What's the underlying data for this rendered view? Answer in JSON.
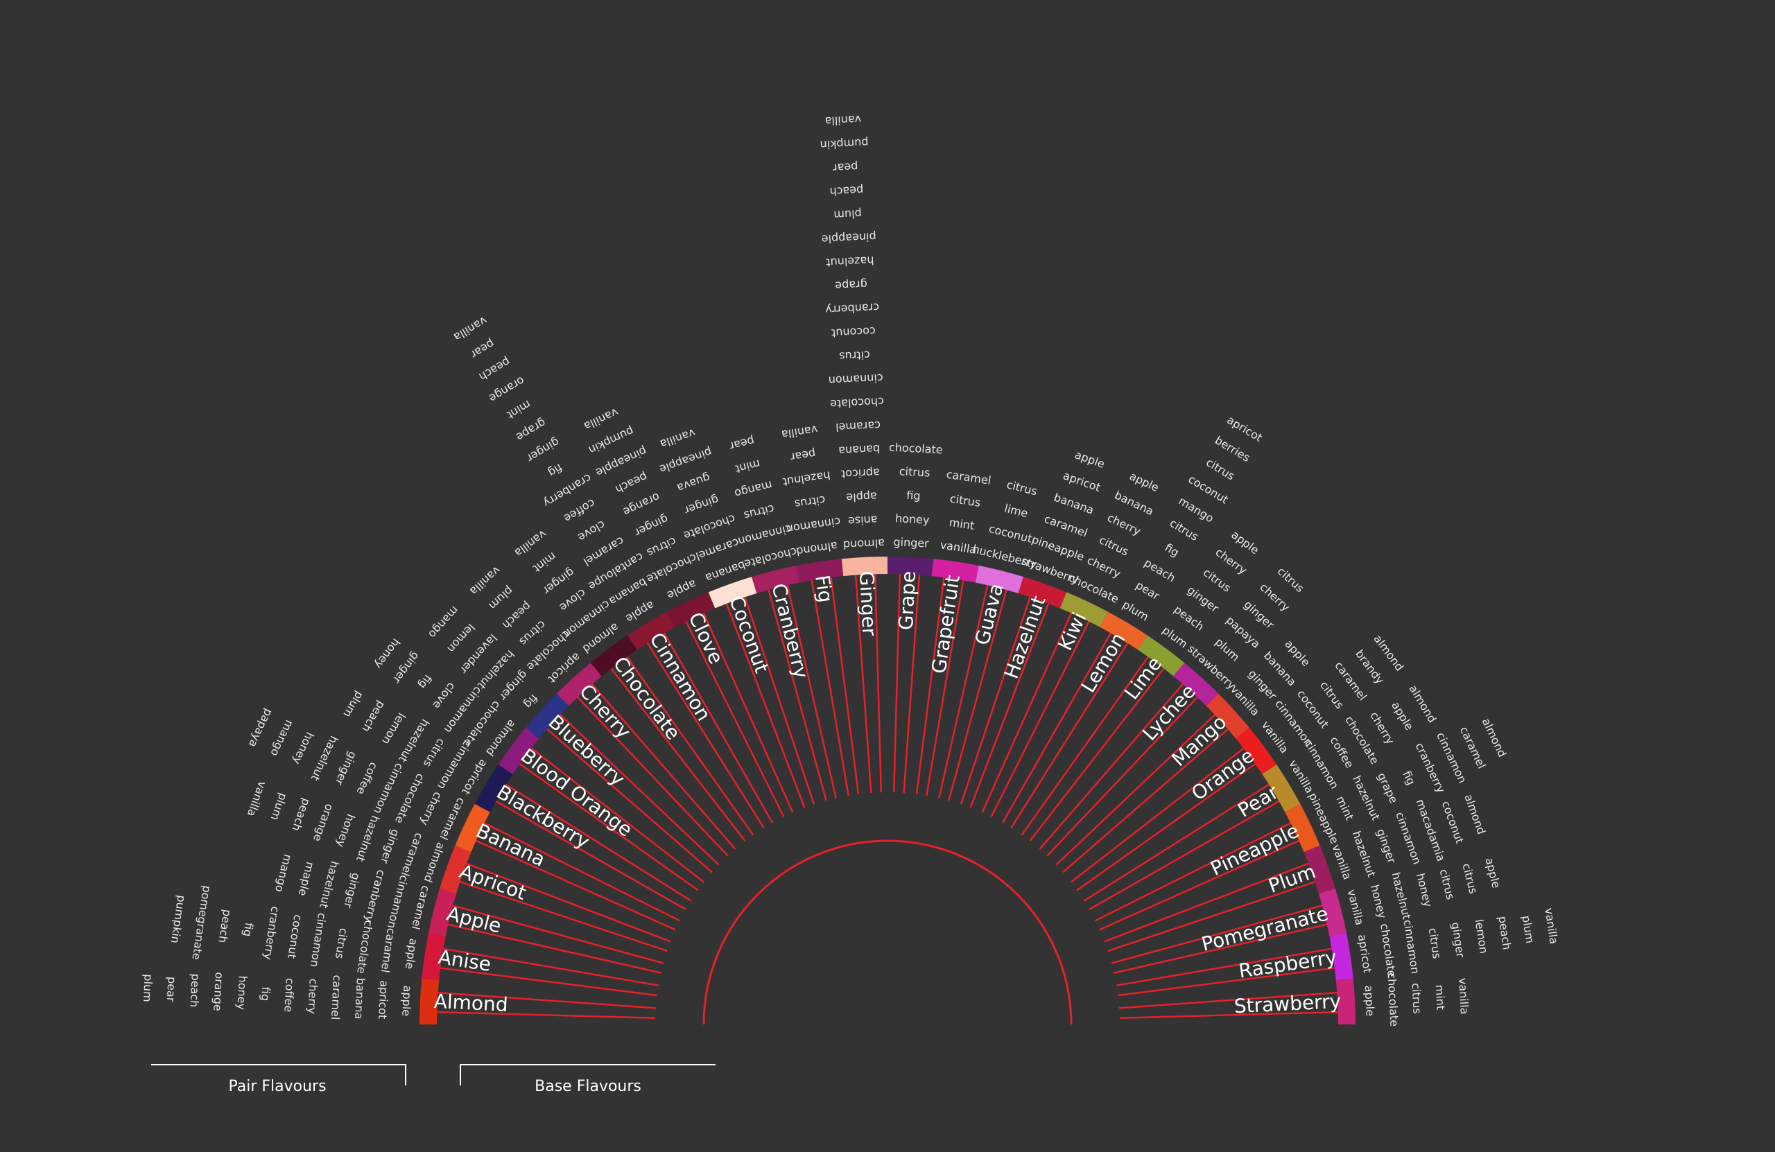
{
  "legend": {
    "pair_label": "Pair Flavours",
    "base_label": "Base Flavours"
  },
  "colors": {
    "background": "#333333",
    "spoke": "#e8202a",
    "text": "#ffffff",
    "pair_text": "#e8e8e8"
  },
  "flavours": [
    {
      "base": "Almond",
      "color": "#dd2e10",
      "pairs": [
        "apple",
        "apricot",
        "banana",
        "caramel",
        "cherry",
        "coffee",
        "fig",
        "honey",
        "orange",
        "peach",
        "pear",
        "plum"
      ]
    },
    {
      "base": "Anise",
      "color": "#d4173a",
      "pairs": [
        "apple",
        "caramel",
        "chocolate",
        "citrus",
        "cinnamon",
        "coconut",
        "cranberry",
        "fig",
        "peach",
        "pomegranate",
        "pumpkin"
      ]
    },
    {
      "base": "Apple",
      "color": "#c91f59",
      "pairs": [
        "caramel",
        "cinnamon",
        "cranberry",
        "ginger",
        "hazelnut",
        "maple",
        "mango"
      ]
    },
    {
      "base": "Apricot",
      "color": "#e0302e",
      "pairs": [
        "almond",
        "caramel",
        "ginger",
        "hazelnut",
        "honey",
        "orange",
        "peach",
        "plum",
        "vanilla"
      ]
    },
    {
      "base": "Banana",
      "color": "#f05a1f",
      "pairs": [
        "caramel",
        "cherry",
        "chocolate",
        "cinnamon",
        "coffee",
        "ginger",
        "hazelnut",
        "honey",
        "mango",
        "papaya"
      ]
    },
    {
      "base": "Blackberry",
      "color": "#1e1a55",
      "pairs": [
        "apricot",
        "cinnamon",
        "citrus",
        "hazelnut",
        "lemon",
        "peach",
        "plum"
      ]
    },
    {
      "base": "Blood Orange",
      "color": "#8b1b7d",
      "pairs": [
        "almond",
        "chocolate",
        "cinnamon",
        "clove",
        "fig",
        "ginger",
        "honey"
      ]
    },
    {
      "base": "Blueberry",
      "color": "#2c3386",
      "pairs": [
        "fig",
        "ginger",
        "hazelnut",
        "lavender",
        "lemon",
        "mango"
      ]
    },
    {
      "base": "Cherry",
      "color": "#b0226a",
      "pairs": [
        "apricot",
        "chocolate",
        "citrus",
        "peach",
        "plum",
        "vanilla"
      ]
    },
    {
      "base": "Chocolate",
      "color": "#4e0d24",
      "pairs": [
        "almond",
        "cinnamon",
        "clove",
        "ginger",
        "mint",
        "vanilla"
      ]
    },
    {
      "base": "Cinnamon",
      "color": "#8a1631",
      "pairs": [
        "apple",
        "banana",
        "cantaloupe",
        "caramel",
        "clove",
        "coffee",
        "cranberry",
        "fig",
        "ginger",
        "grape",
        "mint",
        "orange",
        "peach",
        "pear",
        "vanilla"
      ]
    },
    {
      "base": "Clove",
      "color": "#7a1430",
      "pairs": [
        "apple",
        "chocolate",
        "citrus",
        "ginger",
        "orange",
        "peach",
        "pineapple",
        "pumpkin",
        "vanilla"
      ]
    },
    {
      "base": "Coconut",
      "color": "#fde1d4",
      "pairs": [
        "banana",
        "caramel",
        "chocolate",
        "ginger",
        "guava",
        "pineapple",
        "vanilla"
      ]
    },
    {
      "base": "Cranberry",
      "color": "#a52160",
      "pairs": [
        "chocolate",
        "cinnamon",
        "citrus",
        "mango",
        "mint",
        "pear"
      ]
    },
    {
      "base": "Fig",
      "color": "#8e1a5c",
      "pairs": [
        "almond",
        "cinnamon",
        "citrus",
        "hazelnut",
        "pear",
        "vanilla"
      ]
    },
    {
      "base": "Ginger",
      "color": "#f7b49e",
      "pairs": [
        "almond",
        "anise",
        "apple",
        "apricot",
        "banana",
        "caramel",
        "chocolate",
        "cinnamon",
        "citrus",
        "coconut",
        "cranberry",
        "grape",
        "hazelnut",
        "pineapple",
        "plum",
        "peach",
        "pear",
        "pumpkin",
        "vanilla"
      ]
    },
    {
      "base": "Grape",
      "color": "#5a1e6e",
      "pairs": [
        "ginger",
        "honey",
        "fig",
        "citrus",
        "chocolate"
      ]
    },
    {
      "base": "Grapefruit",
      "color": "#d421a4",
      "pairs": [
        "vanilla",
        "mint",
        "citrus",
        "caramel"
      ]
    },
    {
      "base": "Guava",
      "color": "#df6fdc",
      "pairs": [
        "huckleberry",
        "coconut",
        "lime",
        "citrus"
      ]
    },
    {
      "base": "Hazelnut",
      "color": "#c81a35",
      "pairs": [
        "strawberry",
        "pineapple",
        "caramel",
        "banana",
        "apricot",
        "apple"
      ]
    },
    {
      "base": "Kiwi",
      "color": "#9e9d34",
      "pairs": [
        "chocolate",
        "cherry",
        "citrus",
        "cherry",
        "banana",
        "apple"
      ]
    },
    {
      "base": "Lemon",
      "color": "#ec6428",
      "pairs": [
        "plum",
        "pear",
        "peach",
        "fig",
        "citrus",
        "mango",
        "coconut",
        "citrus",
        "berries",
        "apricot"
      ]
    },
    {
      "base": "Lime",
      "color": "#8aa032",
      "pairs": [
        "plum",
        "peach",
        "ginger",
        "citrus",
        "cherry",
        "apple"
      ]
    },
    {
      "base": "Lychee",
      "color": "#b4259b",
      "pairs": [
        "strawberry",
        "plum",
        "papaya",
        "ginger",
        "cherry",
        "citrus"
      ]
    },
    {
      "base": "Mango",
      "color": "#e2402c",
      "pairs": [
        "vanilla",
        "ginger",
        "banana",
        "apple"
      ]
    },
    {
      "base": "Orange",
      "color": "#ec1d1e",
      "pairs": [
        "vanilla",
        "cinnamon",
        "coconut",
        "citrus",
        "caramel",
        "brandy",
        "almond"
      ]
    },
    {
      "base": "Pear",
      "color": "#b88a2a",
      "pairs": [
        "vanilla",
        "cinnamon",
        "coffee",
        "chocolate",
        "cherry",
        "apple",
        "almond"
      ]
    },
    {
      "base": "Pineapple",
      "color": "#ea5a1d",
      "pairs": [
        "pineapple",
        "mint",
        "hazelnut",
        "grape",
        "fig",
        "cranberry",
        "cinnamon",
        "caramel",
        "almond"
      ]
    },
    {
      "base": "Plum",
      "color": "#9d1e5e",
      "pairs": [
        "vanilla",
        "hazelnut",
        "ginger",
        "cinnamon",
        "macadamia",
        "coconut",
        "almond"
      ]
    },
    {
      "base": "Pomegranate",
      "color": "#c92a8e",
      "pairs": [
        "vanilla",
        "honey",
        "hazelnut",
        "honey",
        "citrus",
        "citrus",
        "apple"
      ]
    },
    {
      "base": "Raspberry",
      "color": "#c526e0",
      "pairs": [
        "apricot",
        "chocolate",
        "cinnamon",
        "citrus",
        "ginger",
        "lemon",
        "peach",
        "plum",
        "vanilla"
      ]
    },
    {
      "base": "Strawberry",
      "color": "#c92478",
      "pairs": [
        "apple",
        "chocolate",
        "citrus",
        "mint",
        "vanilla"
      ]
    }
  ]
}
